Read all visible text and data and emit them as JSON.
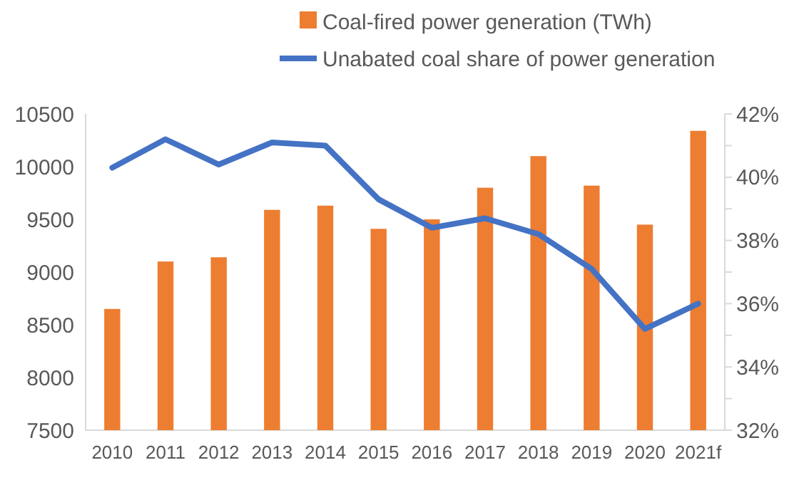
{
  "chart_data": {
    "type": "bar",
    "categories": [
      "2010",
      "2011",
      "2012",
      "2013",
      "2014",
      "2015",
      "2016",
      "2017",
      "2018",
      "2019",
      "2020",
      "2021f"
    ],
    "series": [
      {
        "name": "Coal-fired power generation (TWh)",
        "color": "#ed7d31",
        "values": [
          8650,
          9100,
          9140,
          9590,
          9630,
          9410,
          9500,
          9800,
          10100,
          9820,
          9450,
          10340
        ]
      },
      {
        "name": "Unabated coal share of power generation",
        "type": "line",
        "axis": "y2",
        "color": "#4472c4",
        "values": [
          40.3,
          41.2,
          40.4,
          41.1,
          41.0,
          39.3,
          38.4,
          38.7,
          38.2,
          37.1,
          35.2,
          36.0
        ]
      }
    ],
    "ylim": [
      7500,
      10500
    ],
    "yticks": [
      7500,
      8000,
      8500,
      9000,
      9500,
      10000,
      10500
    ],
    "y2lim": [
      32,
      42
    ],
    "y2ticks": [
      {
        "value": 32,
        "label": "32%"
      },
      {
        "value": 33,
        "label": null
      },
      {
        "value": 34,
        "label": "34%"
      },
      {
        "value": 35,
        "label": null
      },
      {
        "value": 36,
        "label": "36%"
      },
      {
        "value": 37,
        "label": null
      },
      {
        "value": 38,
        "label": "38%"
      },
      {
        "value": 39,
        "label": null
      },
      {
        "value": 40,
        "label": "40%"
      },
      {
        "value": 41,
        "label": null
      },
      {
        "value": 42,
        "label": "42%"
      }
    ],
    "legend": "top",
    "line_style": "solid"
  }
}
